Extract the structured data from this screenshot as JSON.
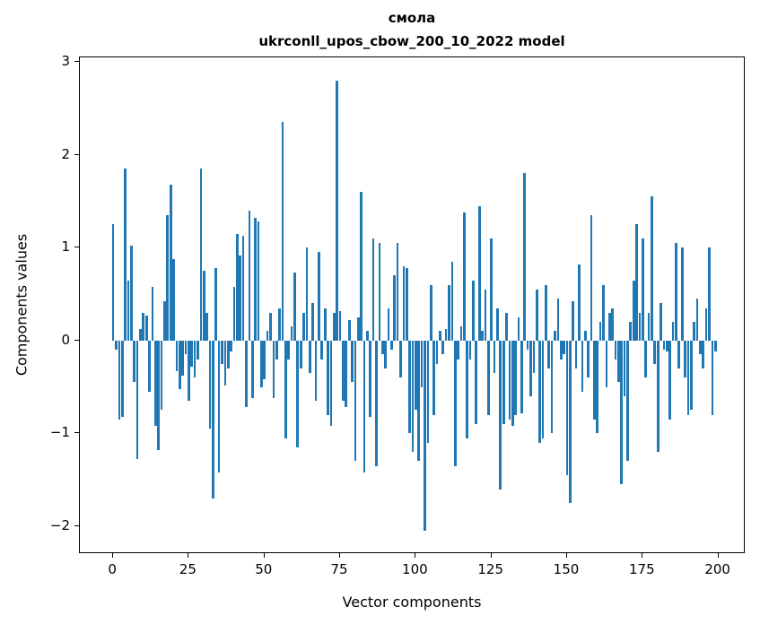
{
  "figure": {
    "title_line1": "смола",
    "title_line2": "ukrconll_upos_cbow_200_10_2022 model",
    "xlabel": "Vector components",
    "ylabel": "Components values"
  },
  "chart_data": {
    "type": "bar",
    "title": "смола — ukrconll_upos_cbow_200_10_2022 model",
    "xlabel": "Vector components",
    "ylabel": "Components values",
    "bar_color": "#1f77b4",
    "grid": false,
    "legend": "none",
    "x_ticks": [
      0,
      25,
      50,
      75,
      100,
      125,
      150,
      175,
      200
    ],
    "y_ticks": [
      -2,
      -1,
      0,
      1,
      2,
      3
    ],
    "xlim": [
      -11,
      209
    ],
    "ylim": [
      -2.3,
      3.05
    ],
    "bar_width": 0.8,
    "values": [
      1.25,
      -0.1,
      -0.85,
      -0.82,
      1.85,
      0.65,
      1.02,
      -0.45,
      -1.28,
      0.12,
      0.3,
      0.27,
      -0.55,
      0.58,
      -0.92,
      -1.18,
      -0.75,
      0.42,
      1.35,
      1.68,
      0.88,
      -0.33,
      -0.52,
      -0.38,
      -0.15,
      -0.65,
      -0.28,
      -0.4,
      -0.2,
      1.85,
      0.75,
      0.3,
      -0.95,
      -1.7,
      0.78,
      -1.42,
      -0.25,
      -0.48,
      -0.3,
      -0.12,
      0.58,
      1.15,
      0.92,
      1.13,
      -0.72,
      1.4,
      -0.62,
      1.32,
      1.28,
      -0.5,
      -0.42,
      0.1,
      0.3,
      -0.62,
      -0.2,
      0.35,
      2.35,
      -1.05,
      -0.2,
      0.15,
      0.73,
      -1.15,
      -0.3,
      0.3,
      1.0,
      -0.35,
      0.4,
      -0.65,
      0.95,
      -0.2,
      0.35,
      -0.8,
      -0.92,
      0.3,
      2.8,
      0.32,
      -0.65,
      -0.72,
      0.22,
      -0.45,
      -1.3,
      0.25,
      1.6,
      -1.42,
      0.1,
      -0.82,
      1.1,
      -1.35,
      1.05,
      -0.15,
      -0.3,
      0.35,
      -0.1,
      0.7,
      1.05,
      -0.4,
      0.8,
      0.78,
      -1.0,
      -1.2,
      -0.75,
      -1.3,
      -0.5,
      -2.05,
      -1.1,
      0.6,
      -0.8,
      -0.25,
      0.1,
      -0.15,
      0.12,
      0.6,
      0.85,
      -1.35,
      -0.2,
      0.15,
      1.38,
      -1.05,
      -0.2,
      0.65,
      -0.9,
      1.45,
      0.1,
      0.55,
      -0.8,
      1.1,
      -0.35,
      0.35,
      -1.6,
      -0.9,
      0.3,
      -0.85,
      -0.92,
      -0.8,
      0.25,
      -0.78,
      1.8,
      -0.1,
      -0.6,
      -0.35,
      0.55,
      -1.1,
      -1.05,
      0.6,
      -0.3,
      -1.0,
      0.1,
      0.45,
      -0.2,
      -0.15,
      -1.45,
      -1.75,
      0.42,
      -0.3,
      0.82,
      -0.55,
      0.1,
      -0.4,
      1.35,
      -0.85,
      -1.0,
      0.2,
      0.6,
      -0.5,
      0.3,
      0.35,
      -0.2,
      -0.45,
      -1.55,
      -0.6,
      -1.3,
      0.2,
      0.65,
      1.25,
      0.3,
      1.1,
      -0.4,
      0.3,
      1.55,
      -0.25,
      -1.2,
      0.4,
      -0.1,
      -0.12,
      -0.85,
      0.2,
      1.05,
      -0.3,
      1.0,
      -0.4,
      -0.8,
      -0.75,
      0.2,
      0.45,
      -0.15,
      -0.3,
      0.35,
      1.0,
      -0.8,
      -0.12
    ]
  }
}
